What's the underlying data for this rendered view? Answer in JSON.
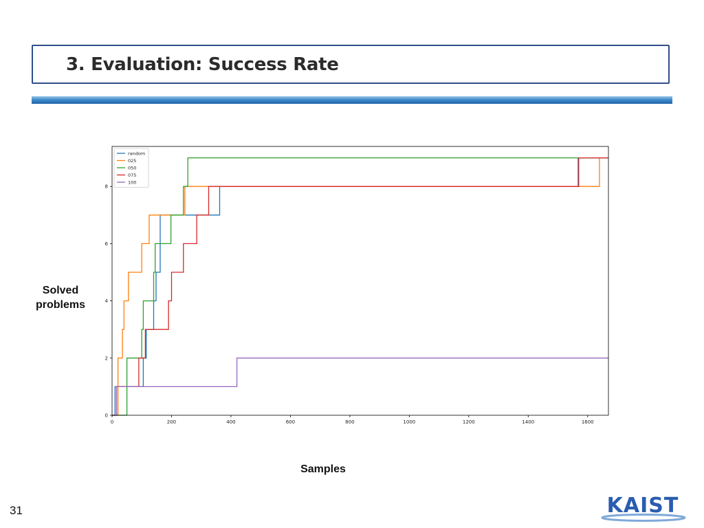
{
  "slide": {
    "title": "3. Evaluation: Success Rate",
    "y_axis_caption": [
      "Solved",
      "problems"
    ],
    "x_axis_caption": "Samples",
    "page_number": "31",
    "logo_text": "KAIST"
  },
  "colors": {
    "title_border": "#2f4e8c",
    "logo_blue": "#2a5db0"
  },
  "chart_data": {
    "type": "line",
    "step": true,
    "title": "",
    "xlabel": "",
    "ylabel": "",
    "xlim": [
      0,
      1670
    ],
    "ylim": [
      0,
      9.4
    ],
    "xticks": [
      0,
      200,
      400,
      600,
      800,
      1000,
      1200,
      1400,
      1600
    ],
    "yticks": [
      0,
      2,
      4,
      6,
      8
    ],
    "grid": false,
    "legend_position": "top-left",
    "series": [
      {
        "name": "random",
        "color": "#1f77b4",
        "x": [
          0,
          10,
          105,
          115,
          140,
          148,
          162,
          230,
          270,
          362,
          1568,
          1670
        ],
        "y": [
          0,
          1,
          2,
          3,
          4,
          5,
          7,
          7,
          7,
          8,
          9,
          9
        ]
      },
      {
        "name": "025",
        "color": "#ff7f0e",
        "x": [
          0,
          20,
          35,
          40,
          55,
          100,
          125,
          245,
          1640,
          1670
        ],
        "y": [
          0,
          2,
          3,
          4,
          5,
          6,
          7,
          8,
          9,
          9
        ]
      },
      {
        "name": "050",
        "color": "#2ca02c",
        "x": [
          0,
          35,
          50,
          100,
          105,
          140,
          145,
          198,
          240,
          255,
          1670
        ],
        "y": [
          0,
          0,
          2,
          3,
          4,
          5,
          6,
          7,
          8,
          9,
          9
        ]
      },
      {
        "name": "075",
        "color": "#d62728",
        "x": [
          0,
          15,
          90,
          112,
          190,
          200,
          240,
          285,
          325,
          1570,
          1670
        ],
        "y": [
          0,
          1,
          2,
          3,
          4,
          5,
          6,
          7,
          8,
          9,
          9
        ]
      },
      {
        "name": "100",
        "color": "#9467bd",
        "x": [
          0,
          15,
          420,
          1670
        ],
        "y": [
          0,
          1,
          2,
          2
        ]
      }
    ]
  }
}
